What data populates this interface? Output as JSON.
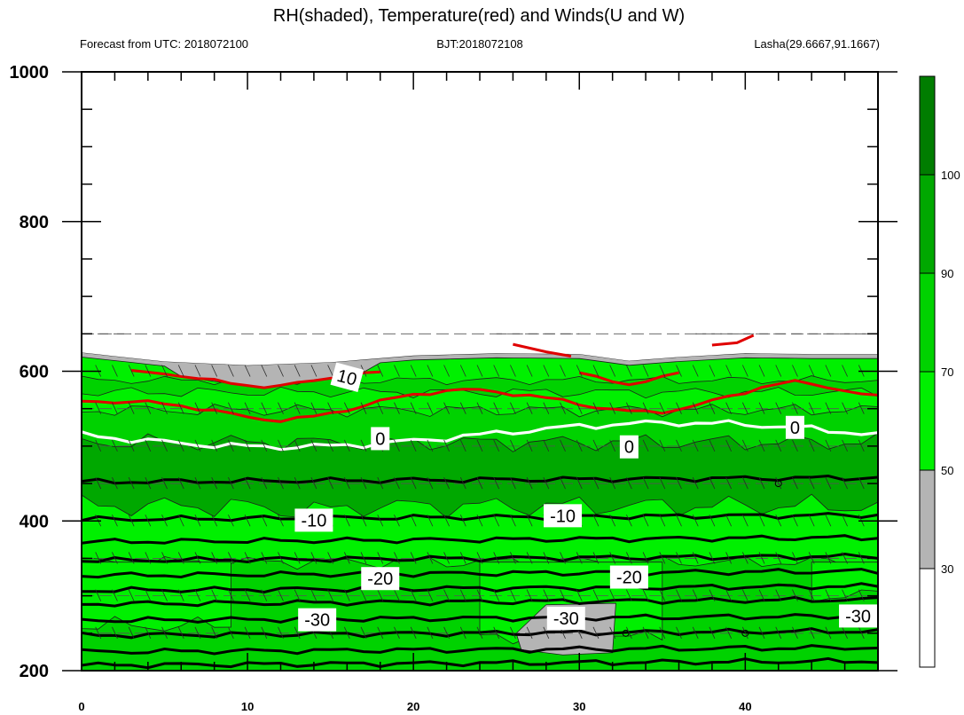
{
  "chart_data": {
    "type": "contour",
    "title": "RH(shaded), Temperature(red) and Winds(U and W)",
    "subtitle_left": "Forecast from UTC: 2018072100",
    "subtitle_center": "BJT:2018072108",
    "subtitle_right": "Lasha(29.6667,91.1667)",
    "xlim": [
      0,
      48
    ],
    "ylim": [
      1000,
      200
    ],
    "x_ticks": [
      0,
      10,
      20,
      30,
      40
    ],
    "y_ticks": [
      200,
      400,
      600,
      800,
      1000
    ],
    "x_tick_labels": [
      "0",
      "10",
      "20",
      "30",
      "40"
    ],
    "y_tick_labels": [
      "200",
      "400",
      "600",
      "800",
      "1000"
    ],
    "colorbar": {
      "levels": [
        30,
        50,
        70,
        90,
        100
      ],
      "labels": [
        "30",
        "50",
        "70",
        "90",
        "100"
      ],
      "colors": [
        "#ffffff",
        "#b4b4b4",
        "#00f000",
        "#00d200",
        "#00a800",
        "#007d00"
      ]
    },
    "temperature_contour_labels": [
      {
        "text": "-30",
        "x": 14.2,
        "y": 268
      },
      {
        "text": "-30",
        "x": 29.2,
        "y": 270
      },
      {
        "text": "-30",
        "x": 46.8,
        "y": 273
      },
      {
        "text": "-20",
        "x": 18.0,
        "y": 323
      },
      {
        "text": "-20",
        "x": 33.0,
        "y": 325
      },
      {
        "text": "-10",
        "x": 14.0,
        "y": 401
      },
      {
        "text": "-10",
        "x": 29.0,
        "y": 407
      },
      {
        "text": "0",
        "x": 18.0,
        "y": 510
      },
      {
        "text": "0",
        "x": 33.0,
        "y": 499
      },
      {
        "text": "0",
        "x": 43.0,
        "y": 525
      },
      {
        "text": "10",
        "x": 16.0,
        "y": 592
      }
    ],
    "isotherm_levels": [
      -40,
      -35,
      -30,
      -25,
      -20,
      -15,
      -10,
      -5,
      0,
      5,
      10,
      15
    ],
    "surface_pressure_hPa": [
      [
        0,
        625
      ],
      [
        5,
        613
      ],
      [
        10,
        608
      ],
      [
        15,
        612
      ],
      [
        20,
        621
      ],
      [
        25,
        624
      ],
      [
        30,
        623
      ],
      [
        33,
        614
      ],
      [
        36,
        619
      ],
      [
        40,
        624
      ],
      [
        44,
        623
      ],
      [
        48,
        623
      ]
    ]
  }
}
